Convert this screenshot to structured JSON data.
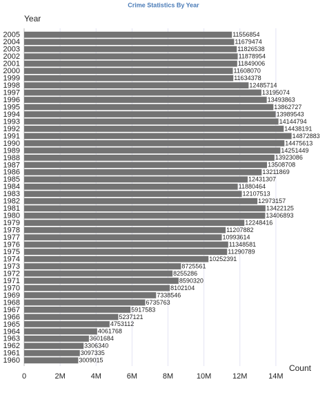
{
  "chart_data": {
    "type": "bar",
    "orientation": "horizontal",
    "title": "Crime Statistics By Year",
    "y_label": "Year",
    "x_label": "Count",
    "categories": [
      "2005",
      "2004",
      "2003",
      "2002",
      "2001",
      "2000",
      "1999",
      "1998",
      "1997",
      "1996",
      "1995",
      "1994",
      "1993",
      "1992",
      "1991",
      "1990",
      "1989",
      "1988",
      "1987",
      "1986",
      "1985",
      "1984",
      "1983",
      "1982",
      "1981",
      "1980",
      "1979",
      "1978",
      "1977",
      "1976",
      "1975",
      "1974",
      "1973",
      "1972",
      "1971",
      "1970",
      "1969",
      "1968",
      "1967",
      "1966",
      "1965",
      "1964",
      "1963",
      "1962",
      "1961",
      "1960"
    ],
    "values": [
      11556854,
      11679474,
      11826538,
      11878954,
      11849006,
      11608070,
      11634378,
      12485714,
      13195074,
      13493863,
      13862727,
      13989543,
      14144794,
      14438191,
      14872883,
      14475613,
      14251449,
      13923086,
      13508708,
      13211869,
      12431307,
      11880464,
      12107513,
      12973157,
      13422125,
      13406893,
      12248416,
      11207882,
      10993614,
      11348581,
      11290789,
      10252391,
      8725561,
      8255286,
      8590320,
      8102104,
      7338546,
      6735763,
      5917583,
      5237121,
      4753112,
      4061768,
      3601684,
      3306340,
      3097335,
      3009015
    ],
    "color": "#737373",
    "xlim": [
      0,
      16000000
    ],
    "xticks": [
      0,
      {
        "value": 2000000,
        "label": "2M"
      },
      {
        "value": 4000000,
        "label": "4M"
      },
      {
        "value": 6000000,
        "label": "6M"
      },
      {
        "value": 8000000,
        "label": "8M"
      },
      {
        "value": 10000000,
        "label": "10M"
      },
      {
        "value": 12000000,
        "label": "12M"
      },
      {
        "value": 14000000,
        "label": "14M"
      }
    ],
    "grid": true
  }
}
